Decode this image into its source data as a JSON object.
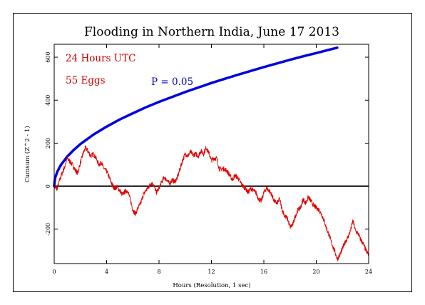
{
  "chart_data": {
    "type": "line",
    "title": "Flooding in Northern India, June 17 2013",
    "xlabel": "Hours (Resolution, 1 sec)",
    "ylabel": "Cumsum (Z^2 - 1)",
    "xlim": [
      0,
      24
    ],
    "ylim": [
      -360,
      660
    ],
    "xticks": [
      "0",
      "4",
      "8",
      "12",
      "16",
      "20",
      "24"
    ],
    "yticks": [
      "-200",
      "0",
      "200",
      "400",
      "600"
    ],
    "annotations": [
      {
        "text": "24 Hours UTC",
        "color": "#cc0000"
      },
      {
        "text": "55 Eggs",
        "color": "#cc0000"
      },
      {
        "text": "P = 0.05",
        "color": "#0000cc"
      }
    ],
    "series": [
      {
        "color": "#0000e0",
        "style": "envelope",
        "x": [
          0,
          0.05,
          0.1,
          0.25,
          0.5,
          1,
          1.5,
          2,
          3,
          4,
          5,
          6,
          7,
          8,
          9,
          10,
          11,
          12,
          13,
          14,
          15,
          16,
          17,
          18,
          19,
          20,
          21,
          21.6
        ],
        "y": [
          0,
          31,
          44,
          69,
          98,
          138,
          169,
          196,
          240,
          277,
          310,
          339,
          367,
          392,
          415,
          438,
          459,
          480,
          499,
          518,
          536,
          554,
          571,
          588,
          604,
          619,
          635,
          644
        ]
      },
      {
        "color": "#e00000",
        "style": "walk",
        "x": [
          0,
          0.2,
          0.4,
          0.6,
          0.8,
          1,
          1.2,
          1.4,
          1.6,
          1.8,
          2,
          2.2,
          2.4,
          2.6,
          2.8,
          3,
          3.2,
          3.4,
          3.6,
          3.8,
          4,
          4.2,
          4.4,
          4.6,
          4.8,
          5,
          5.2,
          5.4,
          5.6,
          5.8,
          6,
          6.2,
          6.4,
          6.6,
          6.8,
          7,
          7.2,
          7.4,
          7.6,
          7.8,
          8,
          8.2,
          8.4,
          8.6,
          8.8,
          9,
          9.2,
          9.4,
          9.6,
          9.8,
          10,
          10.2,
          10.4,
          10.6,
          10.8,
          11,
          11.2,
          11.4,
          11.6,
          11.8,
          12,
          12.2,
          12.4,
          12.6,
          12.8,
          13,
          13.2,
          13.4,
          13.6,
          13.8,
          14,
          14.2,
          14.4,
          14.6,
          14.8,
          15,
          15.2,
          15.4,
          15.6,
          15.8,
          16,
          16.2,
          16.4,
          16.6,
          16.8,
          17,
          17.2,
          17.4,
          17.6,
          17.8,
          18,
          18.2,
          18.4,
          18.6,
          18.8,
          19,
          19.2,
          19.4,
          19.6,
          19.8,
          20,
          20.2,
          20.4,
          20.6,
          20.8,
          21,
          21.2,
          21.4,
          21.6,
          21.8,
          22,
          22.2,
          22.4,
          22.6,
          22.8,
          23,
          23.2,
          23.4,
          23.6,
          23.8,
          24
        ],
        "y": [
          0,
          -15,
          25,
          60,
          90,
          130,
          115,
          100,
          75,
          60,
          110,
          150,
          180,
          160,
          140,
          150,
          130,
          100,
          110,
          80,
          70,
          40,
          10,
          -10,
          -5,
          -20,
          -40,
          -25,
          -20,
          -60,
          -110,
          -130,
          -100,
          -80,
          -40,
          -20,
          -5,
          15,
          5,
          -30,
          -10,
          20,
          40,
          30,
          10,
          30,
          20,
          40,
          80,
          120,
          150,
          140,
          160,
          145,
          150,
          140,
          165,
          150,
          180,
          155,
          120,
          130,
          130,
          80,
          80,
          80,
          70,
          50,
          30,
          50,
          40,
          20,
          0,
          -10,
          -30,
          -10,
          -20,
          -30,
          -60,
          -70,
          -30,
          -10,
          -20,
          -40,
          -70,
          -80,
          -60,
          -110,
          -140,
          -150,
          -190,
          -180,
          -140,
          -110,
          -100,
          -60,
          -80,
          -50,
          -70,
          -90,
          -100,
          -110,
          -130,
          -160,
          -200,
          -230,
          -270,
          -300,
          -340,
          -320,
          -290,
          -260,
          -240,
          -210,
          -160,
          -210,
          -220,
          -250,
          -270,
          -300,
          -320
        ]
      }
    ]
  }
}
